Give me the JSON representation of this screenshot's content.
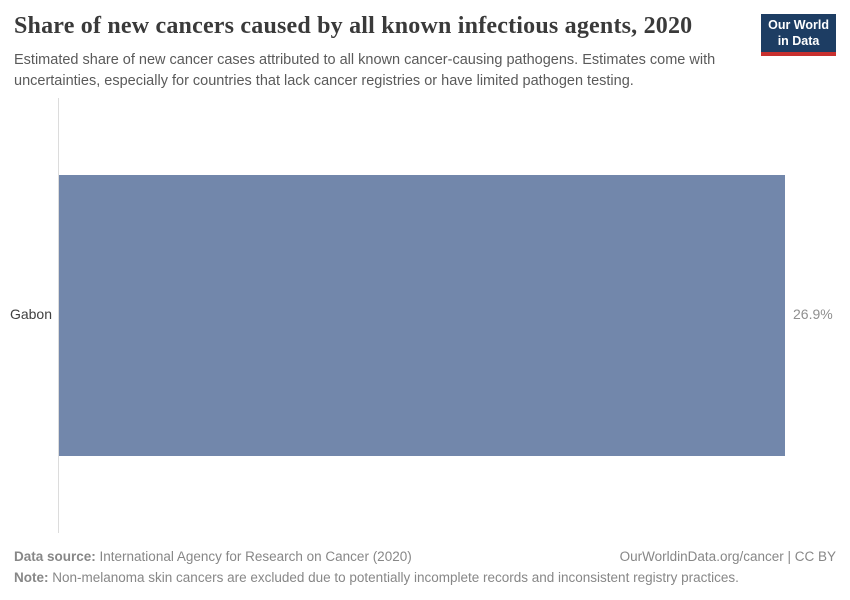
{
  "header": {
    "title": "Share of new cancers caused by all known infectious agents, 2020",
    "subtitle": "Estimated share of new cancer cases attributed to all known cancer-causing pathogens. Estimates come with uncertainties, especially for countries that lack cancer registries or have limited pathogen testing.",
    "logo": {
      "line1": "Our World",
      "line2": "in Data",
      "background_color": "#1d3d63",
      "accent_color": "#c8302e"
    }
  },
  "chart_data": {
    "type": "bar",
    "orientation": "horizontal",
    "categories": [
      "Gabon"
    ],
    "values": [
      26.9
    ],
    "value_labels": [
      "26.9%"
    ],
    "title": "Share of new cancers caused by all known infectious agents, 2020",
    "xlabel": "",
    "ylabel": "",
    "xlim": [
      0,
      26.9
    ],
    "grid": false,
    "legend": false,
    "bar_color": "#7287ab"
  },
  "footer": {
    "data_source_label": "Data source:",
    "data_source": " International Agency for Research on Cancer (2020)",
    "attribution": "OurWorldinData.org/cancer | CC BY",
    "note_label": "Note:",
    "note": " Non-melanoma skin cancers are excluded due to potentially incomplete records and inconsistent registry practices."
  }
}
